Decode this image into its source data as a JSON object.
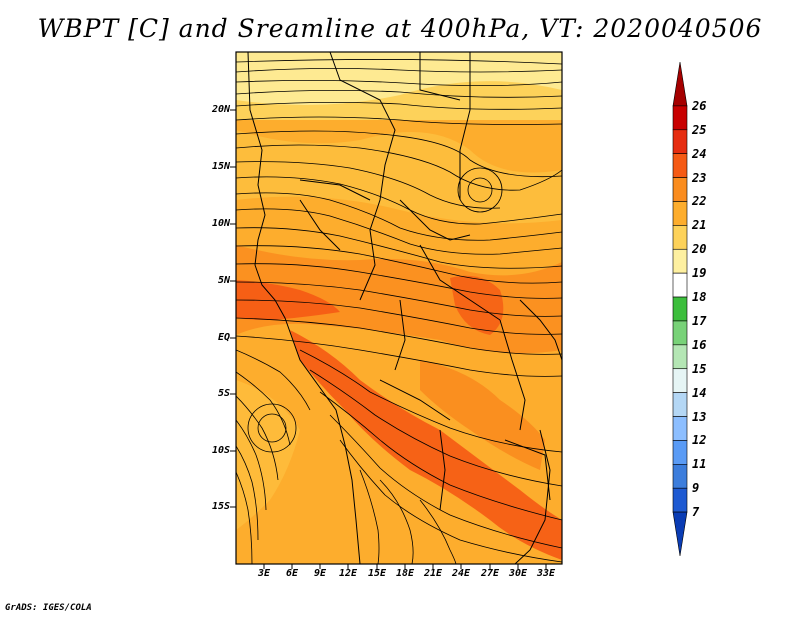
{
  "title": "WBPT [C] and Sreamline at 400hPa, VT: 2020040506",
  "footer": "GrADS: IGES/COLA",
  "map": {
    "lat_labels": [
      "20N",
      "15N",
      "10N",
      "5N",
      "EQ",
      "5S",
      "10S",
      "15S"
    ],
    "lon_labels": [
      "3E",
      "6E",
      "9E",
      "12E",
      "15E",
      "18E",
      "21E",
      "24E",
      "27E",
      "30E",
      "33E"
    ]
  },
  "colorbar": {
    "labels": [
      "26",
      "25",
      "24",
      "23",
      "22",
      "21",
      "20",
      "19",
      "18",
      "17",
      "16",
      "15",
      "14",
      "13",
      "12",
      "11",
      "9",
      "7"
    ],
    "colors": [
      "#a50000",
      "#c80000",
      "#e62d10",
      "#f55a14",
      "#fa8c1e",
      "#fdad2d",
      "#fdd25a",
      "#fef0a0",
      "#ffffff",
      "#3cbe3c",
      "#78d278",
      "#b4e6b4",
      "#e6f5f5",
      "#b4d7f5",
      "#8cbeff",
      "#5a9bf5",
      "#3c7ddc",
      "#1e5ad2",
      "#0a3cb4"
    ]
  }
}
